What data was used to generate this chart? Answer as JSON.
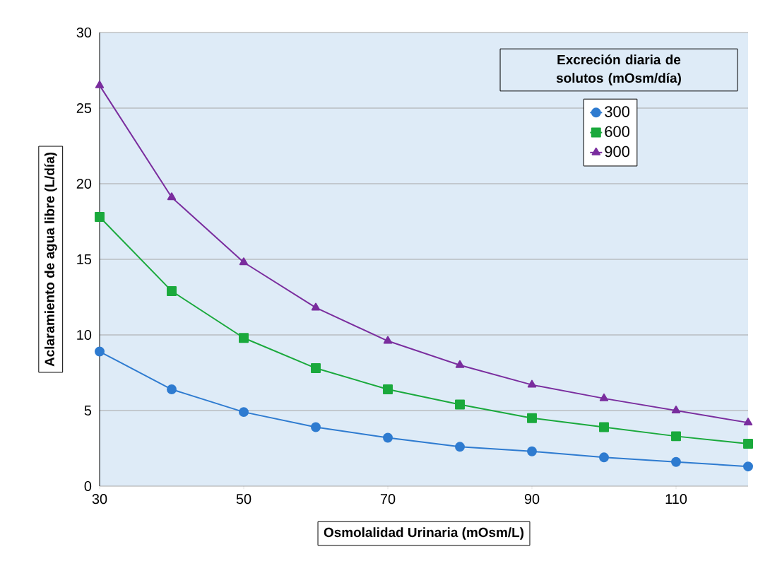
{
  "chart_data": {
    "type": "line",
    "xlabel": "Osmolalidad Urinaria (mOsm/L)",
    "ylabel": "Aclaramiento de agua libre (L/día)",
    "legend_title": "Excreción diaria de solutos (mOsm/día)",
    "x": [
      30,
      40,
      50,
      60,
      70,
      80,
      90,
      100,
      110,
      120
    ],
    "series": [
      {
        "name": "300",
        "color": "#2e7bd0",
        "marker": "circle",
        "values": [
          8.9,
          6.4,
          4.9,
          3.9,
          3.2,
          2.6,
          2.3,
          1.9,
          1.6,
          1.3
        ]
      },
      {
        "name": "600",
        "color": "#1aa93c",
        "marker": "square",
        "values": [
          17.8,
          12.9,
          9.8,
          7.8,
          6.4,
          5.4,
          4.5,
          3.9,
          3.3,
          2.8
        ]
      },
      {
        "name": "900",
        "color": "#7a2d9e",
        "marker": "triangle",
        "values": [
          26.5,
          19.1,
          14.8,
          11.8,
          9.6,
          8.0,
          6.7,
          5.8,
          5.0,
          4.2
        ]
      }
    ],
    "xlim": [
      30,
      120
    ],
    "ylim": [
      0,
      30
    ],
    "xticks": [
      30,
      50,
      70,
      90,
      110
    ],
    "yticks": [
      0,
      5,
      10,
      15,
      20,
      25,
      30
    ],
    "grid": "y",
    "legend": "top right",
    "line_style": "solid"
  }
}
